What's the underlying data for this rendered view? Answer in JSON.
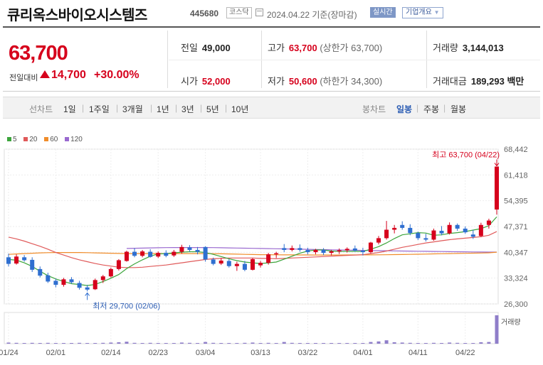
{
  "header": {
    "name": "큐리옥스바이오시스템즈",
    "code": "445680",
    "market": "코스닥",
    "date": "2024.04.22 기준(장마감)",
    "realtime": "실시간",
    "corp_info": "기업개요"
  },
  "summary": {
    "price": "63,700",
    "change_label": "전일대비",
    "change": "14,700",
    "change_pct": "+30.00%",
    "prev_label": "전일",
    "prev": "49,000",
    "high_label": "고가",
    "high": "63,700",
    "upper_limit": "(상한가 63,700)",
    "volume_label": "거래량",
    "volume": "3,144,013",
    "open_label": "시가",
    "open": "52,000",
    "low_label": "저가",
    "low": "50,600",
    "lower_limit": "(하한가 34,300)",
    "amount_label": "거래대금",
    "amount": "189,293 백만"
  },
  "periods": {
    "line_label": "선차트",
    "line_opts": [
      "1일",
      "1주일",
      "3개월",
      "1년",
      "3년",
      "5년",
      "10년"
    ],
    "candle_label": "봉차트",
    "candle_opts": [
      "일봉",
      "주봉",
      "월봉"
    ],
    "candle_selected": "일봉"
  },
  "colors": {
    "up": "#d6001c",
    "down": "#2f6fd0",
    "ma5": "#3ca53c",
    "ma20": "#e05a5a",
    "ma60": "#f08c2a",
    "ma120": "#9a6ad0"
  },
  "chart_data": {
    "type": "candlestick",
    "legend": [
      "5",
      "20",
      "60",
      "120"
    ],
    "y_ticks": [
      68442,
      61418,
      54395,
      47371,
      40347,
      33324,
      26300
    ],
    "ylim": [
      26300,
      68442
    ],
    "x_labels": [
      "01/24",
      "02/01",
      "02/14",
      "02/23",
      "03/04",
      "03/13",
      "03/22",
      "04/01",
      "04/11",
      "04/22"
    ],
    "x_label_index": [
      0,
      6,
      13,
      19,
      25,
      32,
      38,
      45,
      52,
      58
    ],
    "max_annotation": "최고 63,700 (04/22)",
    "min_annotation": "최저 29,700 (02/06)",
    "volume_label": "거래량",
    "candles": [
      [
        39000,
        40000,
        36500,
        37200
      ],
      [
        37300,
        39800,
        37000,
        39200
      ],
      [
        39000,
        39600,
        37800,
        38200
      ],
      [
        38300,
        39000,
        35000,
        35600
      ],
      [
        35800,
        36500,
        33500,
        34000
      ],
      [
        34100,
        34800,
        32000,
        32400
      ],
      [
        32600,
        33200,
        30800,
        31500
      ],
      [
        31500,
        33400,
        31000,
        33000
      ],
      [
        33000,
        33600,
        31800,
        32200
      ],
      [
        32000,
        32600,
        30200,
        30700
      ],
      [
        30800,
        31500,
        29700,
        30200
      ],
      [
        30300,
        33200,
        30100,
        32800
      ],
      [
        32800,
        34200,
        32000,
        33800
      ],
      [
        33800,
        36200,
        33500,
        35800
      ],
      [
        35800,
        38500,
        35400,
        38200
      ],
      [
        38000,
        40800,
        37800,
        40500
      ],
      [
        40500,
        41500,
        39000,
        39400
      ],
      [
        39400,
        41000,
        39000,
        40600
      ],
      [
        40500,
        41200,
        38900,
        39100
      ],
      [
        39200,
        40600,
        38800,
        40200
      ],
      [
        40200,
        40900,
        39000,
        39400
      ],
      [
        39500,
        41000,
        39100,
        40500
      ],
      [
        40500,
        42400,
        40000,
        41800
      ],
      [
        41700,
        42300,
        40500,
        41000
      ],
      [
        41000,
        41800,
        39800,
        40500
      ],
      [
        41800,
        42000,
        37800,
        38400
      ],
      [
        38400,
        38900,
        36800,
        37200
      ],
      [
        37300,
        38800,
        36900,
        38100
      ],
      [
        38000,
        38500,
        36200,
        36600
      ],
      [
        36600,
        37800,
        35300,
        37200
      ],
      [
        37200,
        38000,
        35200,
        35600
      ],
      [
        35600,
        38800,
        35400,
        38500
      ],
      [
        36800,
        38000,
        36200,
        37500
      ],
      [
        37500,
        40200,
        37000,
        39800
      ],
      [
        39800,
        40500,
        38800,
        40100
      ],
      [
        41500,
        42600,
        40400,
        41000
      ],
      [
        41000,
        42200,
        40600,
        41500
      ],
      [
        41500,
        42500,
        40500,
        41000
      ],
      [
        41000,
        41600,
        39800,
        40400
      ],
      [
        40400,
        41300,
        39800,
        41000
      ],
      [
        41000,
        41500,
        39600,
        40200
      ],
      [
        40200,
        41000,
        39500,
        40600
      ],
      [
        40600,
        41400,
        39900,
        40900
      ],
      [
        40900,
        41700,
        40300,
        41300
      ],
      [
        41400,
        42200,
        40500,
        40800
      ],
      [
        40800,
        41600,
        39500,
        40400
      ],
      [
        40400,
        43200,
        40000,
        43000
      ],
      [
        43000,
        44800,
        42500,
        44200
      ],
      [
        44200,
        48900,
        43800,
        46500
      ],
      [
        46500,
        47800,
        45500,
        47000
      ],
      [
        47800,
        48800,
        46500,
        47000
      ],
      [
        47000,
        48000,
        45000,
        45600
      ],
      [
        45600,
        46000,
        43700,
        44200
      ],
      [
        44200,
        45400,
        43300,
        43800
      ],
      [
        43800,
        46800,
        43500,
        46300
      ],
      [
        46200,
        47500,
        45000,
        45500
      ],
      [
        45500,
        48500,
        45200,
        47800
      ],
      [
        47800,
        48200,
        46200,
        46800
      ],
      [
        46800,
        47400,
        45400,
        45800
      ],
      [
        45200,
        46500,
        44000,
        44600
      ],
      [
        44800,
        48400,
        44500,
        47800
      ],
      [
        47800,
        49500,
        46800,
        49000
      ],
      [
        52000,
        63700,
        50600,
        63700
      ]
    ],
    "volume": [
      0.04,
      0.03,
      0.02,
      0.03,
      0.02,
      0.03,
      0.02,
      0.02,
      0.02,
      0.03,
      0.02,
      0.02,
      0.03,
      0.04,
      0.05,
      0.07,
      0.03,
      0.02,
      0.03,
      0.02,
      0.02,
      0.02,
      0.04,
      0.03,
      0.02,
      0.06,
      0.03,
      0.02,
      0.02,
      0.02,
      0.03,
      0.04,
      0.02,
      0.03,
      0.02,
      0.06,
      0.03,
      0.02,
      0.02,
      0.02,
      0.02,
      0.02,
      0.02,
      0.02,
      0.02,
      0.02,
      0.06,
      0.08,
      0.12,
      0.05,
      0.04,
      0.03,
      0.02,
      0.02,
      0.03,
      0.02,
      0.04,
      0.03,
      0.02,
      0.02,
      0.05,
      0.06,
      1.0
    ],
    "ma5": [
      38400,
      38200,
      37500,
      36500,
      35200,
      34000,
      33100,
      32400,
      31800,
      31600,
      31300,
      31600,
      32400,
      33300,
      34300,
      35900,
      37200,
      38300,
      39300,
      39900,
      40000,
      40200,
      40400,
      40500,
      40500,
      40300,
      39800,
      39200,
      38600,
      38100,
      37700,
      37500,
      37300,
      37500,
      37700,
      38500,
      39300,
      40100,
      40700,
      41000,
      41000,
      40700,
      40600,
      40600,
      40600,
      40600,
      41200,
      41900,
      42900,
      44100,
      45100,
      45400,
      45700,
      45600,
      45000,
      45100,
      45500,
      45700,
      46000,
      46400,
      46800,
      47600,
      50000
    ],
    "ma20": [
      44500,
      44000,
      43400,
      42700,
      42000,
      41200,
      40300,
      39600,
      38900,
      38300,
      37800,
      37300,
      36900,
      36600,
      36300,
      36200,
      36200,
      36300,
      36500,
      36700,
      36900,
      37200,
      37500,
      37800,
      38100,
      38400,
      38600,
      38700,
      38800,
      38800,
      38800,
      38800,
      38700,
      38700,
      38600,
      38700,
      38800,
      38900,
      39000,
      39100,
      39200,
      39300,
      39400,
      39500,
      39600,
      39700,
      40000,
      40300,
      40700,
      41200,
      41700,
      42100,
      42500,
      42900,
      43200,
      43500,
      43800,
      44000,
      44200,
      44400,
      44600,
      45000,
      46000
    ],
    "ma60": [
      39800,
      39900,
      40000,
      40100,
      40200,
      40250,
      40300,
      40300,
      40300,
      40300,
      40250,
      40200,
      40150,
      40100,
      40050,
      40000,
      40000,
      40000,
      40000,
      40000,
      40000,
      40000,
      40000,
      40000,
      40000,
      40000,
      39980,
      39950,
      39900,
      39850,
      39800,
      39760,
      39720,
      39700,
      39680,
      39660,
      39650,
      39640,
      39630,
      39620,
      39620,
      39620,
      39620,
      39630,
      39640,
      39650,
      39660,
      39680,
      39700,
      39730,
      39760,
      39800,
      39840,
      39880,
      39920,
      39960,
      40000,
      40040,
      40080,
      40120,
      40160,
      40220,
      40400
    ],
    "ma120": [
      null,
      null,
      null,
      null,
      null,
      null,
      null,
      null,
      null,
      null,
      null,
      null,
      null,
      null,
      null,
      41400,
      41450,
      41500,
      41550,
      41600,
      41620,
      41640,
      41650,
      41650,
      41650,
      41640,
      41620,
      41600,
      41560,
      41520,
      41480,
      41440,
      41400,
      41360,
      41320,
      41280,
      41240,
      41200,
      41160,
      41120,
      41080,
      41040,
      41000,
      40960,
      40920,
      40880,
      40840,
      40800,
      40770,
      40740,
      40710,
      40680,
      40650,
      40620,
      40590,
      40560,
      40530,
      40500,
      40480,
      40460,
      40440,
      40420,
      40420
    ]
  }
}
